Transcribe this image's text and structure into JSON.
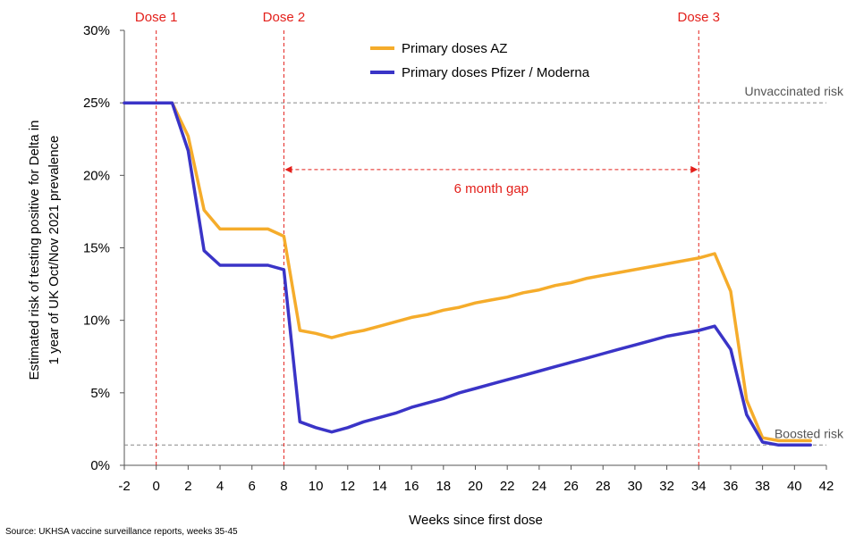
{
  "chart_data": {
    "type": "line",
    "xlabel": "Weeks since first dose",
    "ylabel_lines": [
      "Estimated risk of testing positive for Delta in",
      "1 year of UK Oct/Nov 2021 prevalence"
    ],
    "xlim": [
      -2,
      42
    ],
    "ylim": [
      0,
      30
    ],
    "xticks": [
      -2,
      0,
      2,
      4,
      6,
      8,
      10,
      12,
      14,
      16,
      18,
      20,
      22,
      24,
      26,
      28,
      30,
      32,
      34,
      36,
      38,
      40,
      42
    ],
    "yticks": [
      0,
      5,
      10,
      15,
      20,
      25,
      30
    ],
    "ytick_labels": [
      "0%",
      "5%",
      "10%",
      "15%",
      "20%",
      "25%",
      "30%"
    ],
    "series": [
      {
        "name": "Primary doses AZ",
        "color": "#f5ac2b",
        "x": [
          -2,
          1,
          2,
          3,
          4,
          5,
          6,
          7,
          8,
          9,
          10,
          11,
          12,
          13,
          14,
          15,
          16,
          17,
          18,
          19,
          20,
          21,
          22,
          23,
          24,
          25,
          26,
          27,
          28,
          29,
          30,
          31,
          32,
          33,
          34,
          35,
          36,
          37,
          38,
          39,
          40,
          41
        ],
        "values": [
          25.0,
          25.0,
          22.7,
          17.6,
          16.3,
          16.3,
          16.3,
          16.3,
          15.8,
          9.3,
          9.1,
          8.8,
          9.1,
          9.3,
          9.6,
          9.9,
          10.2,
          10.4,
          10.7,
          10.9,
          11.2,
          11.4,
          11.6,
          11.9,
          12.1,
          12.4,
          12.6,
          12.9,
          13.1,
          13.3,
          13.5,
          13.7,
          13.9,
          14.1,
          14.3,
          14.6,
          12.0,
          4.5,
          1.9,
          1.7,
          1.7,
          1.7
        ]
      },
      {
        "name": "Primary doses Pfizer / Moderna",
        "color": "#3a34c7",
        "x": [
          -2,
          1,
          2,
          3,
          4,
          5,
          6,
          7,
          8,
          9,
          10,
          11,
          12,
          13,
          14,
          15,
          16,
          17,
          18,
          19,
          20,
          21,
          22,
          23,
          24,
          25,
          26,
          27,
          28,
          29,
          30,
          31,
          32,
          33,
          34,
          35,
          36,
          37,
          38,
          39,
          40,
          41
        ],
        "values": [
          25.0,
          25.0,
          21.7,
          14.8,
          13.8,
          13.8,
          13.8,
          13.8,
          13.5,
          3.0,
          2.6,
          2.3,
          2.6,
          3.0,
          3.3,
          3.6,
          4.0,
          4.3,
          4.6,
          5.0,
          5.3,
          5.6,
          5.9,
          6.2,
          6.5,
          6.8,
          7.1,
          7.4,
          7.7,
          8.0,
          8.3,
          8.6,
          8.9,
          9.1,
          9.3,
          9.6,
          8.0,
          3.5,
          1.6,
          1.4,
          1.4,
          1.4
        ]
      }
    ],
    "reference_lines": [
      {
        "label": "Unvaccinated risk",
        "y": 25
      },
      {
        "label": "Boosted risk",
        "y": 1.4
      }
    ],
    "dose_markers": [
      {
        "label": "Dose 1",
        "x": 0
      },
      {
        "label": "Dose 2",
        "x": 8
      },
      {
        "label": "Dose 3",
        "x": 34
      }
    ],
    "gap_annotation": {
      "label": "6 month gap",
      "x_from": 8,
      "x_to": 34,
      "y": 20.4
    },
    "legend_position": "top-center",
    "source": "Source: UKHSA vaccine surveillance reports, weeks 35-45",
    "colors": {
      "dose": "#e3201b",
      "reference": "#888888",
      "axis": "#555555"
    }
  }
}
